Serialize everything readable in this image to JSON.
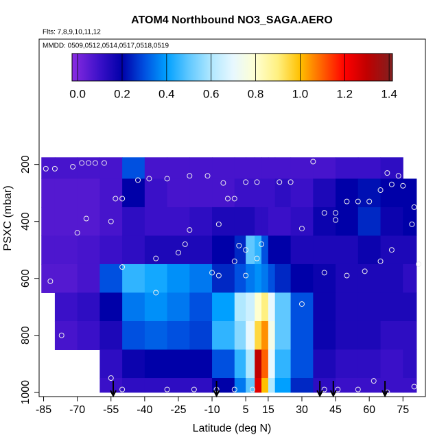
{
  "chart_data": {
    "type": "heatmap",
    "title": "ATOM4 Northbound NO3_SAGA.AERO",
    "annotations": [
      "Flts: 7,8,9,10,11,12",
      "MMDD: 0509,0512,0514,0517,0518,0519"
    ],
    "x_label": "Latitude (deg N)",
    "y_label": "PSXC (mbar)",
    "xlim": [
      -87,
      85
    ],
    "ylim": [
      1015,
      -240
    ],
    "y_inverted": true,
    "xticks": [
      -85,
      -70,
      -55,
      -40,
      -25,
      -10,
      5,
      15,
      30,
      45,
      60,
      75
    ],
    "yticks": [
      200,
      400,
      600,
      800,
      1000
    ],
    "zlim": [
      -0.025,
      1.415
    ],
    "zticks": [
      {
        "value": 0,
        "label": "0.0"
      },
      0.2,
      0.4,
      0.6,
      0.8,
      {
        "value": 1,
        "label": "1.0"
      },
      1.2,
      1.4
    ],
    "colormap": [
      [
        -0.025,
        "#8a2be2"
      ],
      [
        0.1,
        "#3a10c8"
      ],
      [
        0.2,
        "#0000a8"
      ],
      [
        0.3,
        "#0050e0"
      ],
      [
        0.4,
        "#00a0ff"
      ],
      [
        0.5,
        "#60c8ff"
      ],
      [
        0.6,
        "#b0e8ff"
      ],
      [
        0.7,
        "#e8f8ff"
      ],
      [
        0.8,
        "#ffffd0"
      ],
      [
        0.9,
        "#fff080"
      ],
      [
        1.0,
        "#ffc000"
      ],
      [
        1.1,
        "#ff6000"
      ],
      [
        1.2,
        "#ff0000"
      ],
      [
        1.3,
        "#c00000"
      ],
      [
        1.415,
        "#802020"
      ]
    ],
    "x_edges": [
      -86,
      -80,
      -70,
      -60,
      -50,
      -40,
      -30,
      -20,
      -10,
      0,
      5,
      9,
      12,
      15,
      18,
      25,
      35,
      45,
      55,
      65,
      75,
      81
    ],
    "y_edges": [
      175,
      250,
      350,
      450,
      550,
      650,
      750,
      850,
      950,
      1000
    ],
    "values": [
      [
        0.08,
        0.08,
        0.08,
        0.08,
        0.3,
        0.08,
        0.08,
        0.08,
        0.08,
        0.08,
        0.08,
        0.08,
        0.08,
        0.08,
        0.08,
        0.08,
        0.08,
        0.1,
        0.1,
        0.12,
        null
      ],
      [
        0.06,
        0.06,
        0.06,
        0.08,
        0.2,
        0.1,
        0.08,
        0.08,
        0.08,
        0.1,
        0.1,
        0.1,
        0.1,
        0.1,
        0.12,
        0.1,
        0.15,
        0.2,
        0.22,
        0.2,
        0.2
      ],
      [
        0.06,
        0.06,
        0.06,
        0.08,
        0.12,
        0.1,
        0.1,
        0.12,
        0.15,
        0.15,
        0.15,
        0.12,
        0.12,
        0.1,
        0.1,
        0.12,
        0.18,
        0.2,
        0.25,
        0.18,
        0.2
      ],
      [
        0.07,
        0.07,
        0.08,
        0.1,
        0.12,
        0.15,
        0.15,
        0.15,
        0.2,
        0.25,
        0.5,
        0.45,
        0.3,
        0.2,
        0.2,
        0.15,
        0.15,
        0.15,
        0.18,
        0.15,
        0.15
      ],
      [
        0.06,
        0.06,
        0.08,
        0.3,
        0.45,
        0.42,
        0.38,
        0.35,
        0.25,
        0.3,
        0.35,
        0.38,
        0.35,
        0.3,
        0.25,
        0.2,
        0.18,
        0.15,
        0.15,
        0.15,
        0.12
      ],
      [
        null,
        0.1,
        0.12,
        0.2,
        0.35,
        0.38,
        0.35,
        0.3,
        0.4,
        0.6,
        0.65,
        0.8,
        0.9,
        0.7,
        0.5,
        0.3,
        0.18,
        0.15,
        0.15,
        0.15,
        0.15
      ],
      [
        null,
        0.08,
        0.1,
        0.15,
        0.3,
        0.32,
        0.3,
        0.28,
        0.45,
        0.55,
        0.7,
        0.95,
        1.05,
        0.75,
        0.5,
        0.3,
        0.18,
        0.15,
        0.15,
        0.12,
        0.12
      ],
      [
        null,
        null,
        null,
        0.12,
        0.18,
        0.2,
        0.2,
        0.2,
        0.3,
        0.45,
        0.6,
        1.3,
        1.1,
        0.7,
        0.45,
        0.3,
        0.15,
        0.12,
        0.12,
        0.1,
        0.12
      ],
      [
        null,
        null,
        null,
        0.1,
        0.12,
        0.12,
        0.12,
        0.12,
        0.2,
        0.35,
        0.5,
        1.25,
        1.0,
        0.6,
        0.4,
        0.25,
        0.12,
        0.1,
        0.1,
        0.1,
        0.1
      ]
    ],
    "points": {
      "x": [
        -84,
        -80,
        -72,
        -68,
        -65,
        -62,
        -58,
        -43,
        -38,
        -30,
        -20,
        -12,
        -5,
        5,
        10,
        20,
        25,
        -53,
        -50,
        -3,
        0,
        -55,
        -66,
        -70,
        -20,
        -7,
        2,
        5,
        12,
        0,
        10,
        -50,
        -35,
        -25,
        -10,
        -7,
        5,
        -35,
        -22,
        40,
        50,
        58,
        40,
        45,
        50,
        55,
        60,
        65,
        70,
        75,
        80,
        68,
        73,
        -82,
        -77,
        -50,
        -30,
        -18,
        -8,
        0,
        8,
        40,
        46,
        55,
        62,
        68,
        80,
        -55,
        30,
        35,
        45,
        30,
        79,
        82,
        70,
        65
      ],
      "y": [
        215,
        215,
        208,
        195,
        195,
        195,
        195,
        255,
        250,
        250,
        240,
        240,
        265,
        262,
        262,
        262,
        262,
        320,
        320,
        320,
        320,
        400,
        390,
        440,
        430,
        410,
        485,
        500,
        480,
        540,
        530,
        560,
        530,
        510,
        580,
        590,
        590,
        650,
        480,
        580,
        590,
        575,
        370,
        370,
        330,
        330,
        330,
        290,
        270,
        275,
        350,
        230,
        240,
        610,
        800,
        990,
        990,
        990,
        990,
        990,
        990,
        990,
        990,
        990,
        960,
        1000,
        980,
        950,
        690,
        190,
        395,
        425,
        410,
        550,
        500,
        540
      ]
    },
    "arrows_x": [
      -54,
      -8,
      38,
      44,
      67
    ]
  }
}
